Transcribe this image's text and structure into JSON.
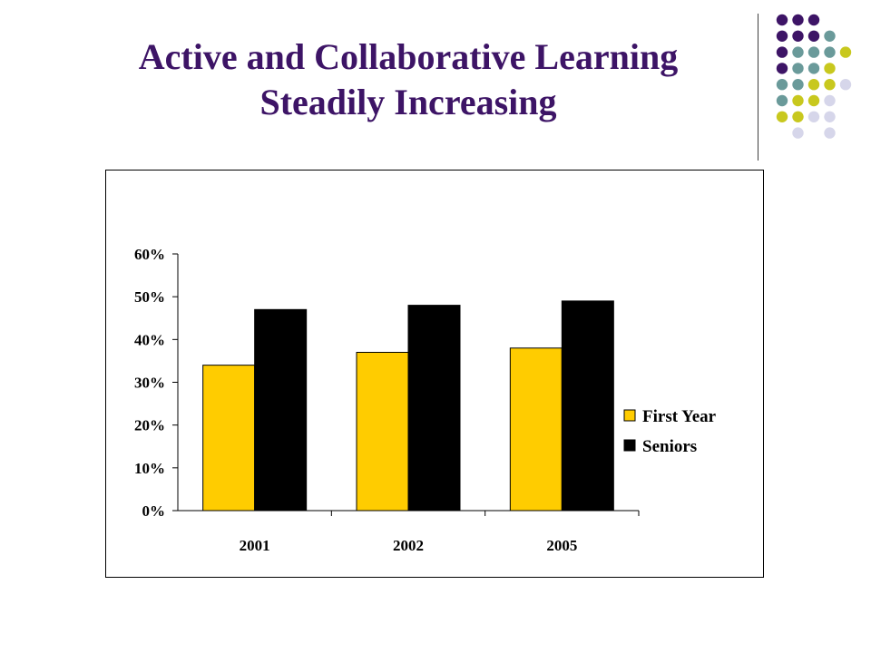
{
  "slide": {
    "title_line1": "Active and Collaborative Learning",
    "title_line2": "Steadily Increasing"
  },
  "colors": {
    "title": "#3d1466",
    "first_year": "#ffcc00",
    "seniors": "#000000",
    "dot_purple": "#3d1466",
    "dot_teal": "#6a9a9a",
    "dot_olive": "#c8c81e",
    "dot_lavender": "#d6d6ea"
  },
  "decoration": {
    "dot_grid": [
      [
        "purple",
        "purple",
        "purple",
        "",
        ""
      ],
      [
        "purple",
        "purple",
        "purple",
        "teal",
        ""
      ],
      [
        "purple",
        "teal",
        "teal",
        "teal",
        "olive"
      ],
      [
        "purple",
        "teal",
        "teal",
        "olive",
        ""
      ],
      [
        "teal",
        "teal",
        "olive",
        "olive",
        "lavender"
      ],
      [
        "teal",
        "olive",
        "olive",
        "lavender",
        ""
      ],
      [
        "olive",
        "olive",
        "lavender",
        "lavender",
        ""
      ],
      [
        "",
        "lavender",
        "",
        "lavender",
        ""
      ]
    ]
  },
  "chart_data": {
    "type": "bar",
    "categories": [
      "2001",
      "2002",
      "2005"
    ],
    "series": [
      {
        "name": "First Year",
        "values": [
          34,
          37,
          38
        ]
      },
      {
        "name": "Seniors",
        "values": [
          47,
          48,
          49
        ]
      }
    ],
    "ylim": [
      0,
      60
    ],
    "yticks": [
      "0%",
      "10%",
      "20%",
      "30%",
      "40%",
      "50%",
      "60%"
    ],
    "y_tick_values": [
      0,
      10,
      20,
      30,
      40,
      50,
      60
    ],
    "legend": "right",
    "grid": false
  }
}
